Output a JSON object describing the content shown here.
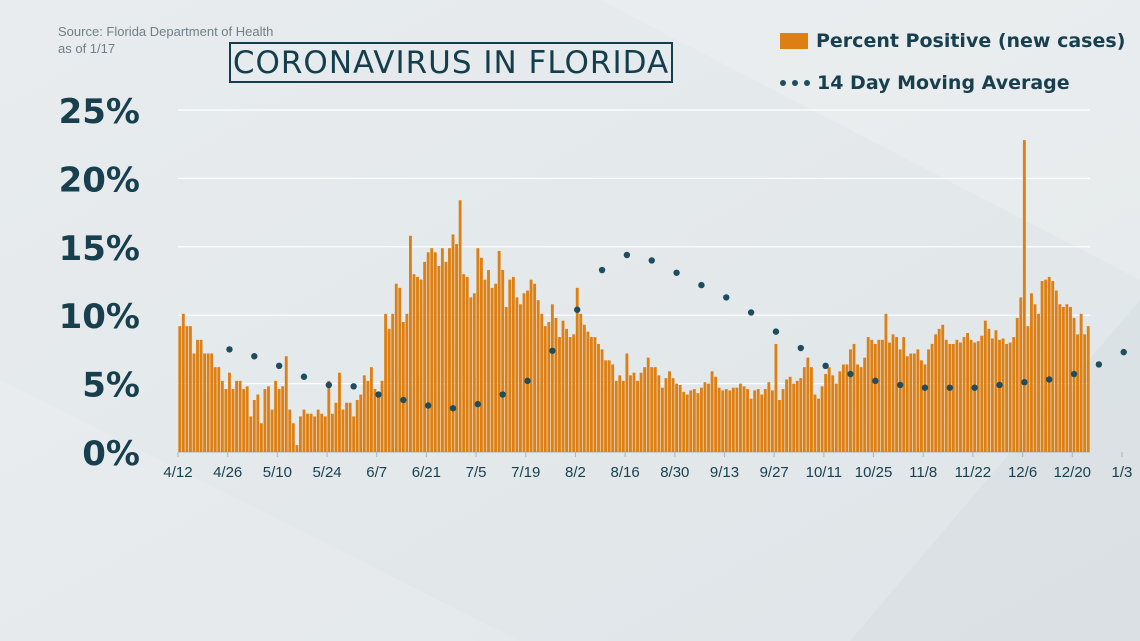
{
  "source_lines": [
    "Source: Florida Department of Health",
    "as of 1/17"
  ],
  "colors": {
    "bar": "#dd7f12",
    "dot": "#1d4d5e",
    "text": "#173f4e",
    "grid": "#ffffff",
    "axis": "#a9b5bb"
  },
  "chart_data": {
    "type": "bar",
    "title": "CORONAVIRUS IN FLORIDA",
    "xlabel": "",
    "ylabel": "",
    "ylim": [
      0,
      25
    ],
    "y_ticks": [
      0,
      5,
      10,
      15,
      20,
      25
    ],
    "y_tick_labels": [
      "0%",
      "5%",
      "10%",
      "15%",
      "20%",
      "25%"
    ],
    "x_tick_labels": [
      "4/12",
      "4/26",
      "5/10",
      "5/24",
      "6/7",
      "6/21",
      "7/5",
      "7/19",
      "8/2",
      "8/16",
      "8/30",
      "9/13",
      "9/27",
      "10/11",
      "10/25",
      "11/8",
      "11/22",
      "12/6",
      "12/20",
      "1/3"
    ],
    "grid": true,
    "legend_position": "top-right",
    "start_date": "4/12",
    "series": [
      {
        "name": "Percent Positive (new cases)",
        "type": "bar",
        "values": [
          9.2,
          10.1,
          9.2,
          9.2,
          7.2,
          8.2,
          8.2,
          7.2,
          7.2,
          7.2,
          6.2,
          6.2,
          5.2,
          4.6,
          5.8,
          4.6,
          5.2,
          5.2,
          4.6,
          4.8,
          2.6,
          3.8,
          4.2,
          2.1,
          4.6,
          4.8,
          3.1,
          5.2,
          4.6,
          4.8,
          7.0,
          3.1,
          2.1,
          0.5,
          2.6,
          3.1,
          2.8,
          2.8,
          2.6,
          3.1,
          2.8,
          2.6,
          5.2,
          2.8,
          3.6,
          5.8,
          3.1,
          3.6,
          3.6,
          2.6,
          3.8,
          4.2,
          5.6,
          5.2,
          6.2,
          4.6,
          4.2,
          5.2,
          10.1,
          9.0,
          10.1,
          12.3,
          12.0,
          9.5,
          10.1,
          15.8,
          13.0,
          12.8,
          12.6,
          13.9,
          14.6,
          14.9,
          14.6,
          13.6,
          14.9,
          13.9,
          14.9,
          15.9,
          15.2,
          18.4,
          13.0,
          12.8,
          11.3,
          11.6,
          14.9,
          14.2,
          12.6,
          13.3,
          12.0,
          12.3,
          14.7,
          13.3,
          10.6,
          12.6,
          12.8,
          11.3,
          10.8,
          11.6,
          11.8,
          12.6,
          12.3,
          11.1,
          10.1,
          9.2,
          9.5,
          10.8,
          9.8,
          8.4,
          9.6,
          9.0,
          8.4,
          8.6,
          12.0,
          10.1,
          9.3,
          8.8,
          8.4,
          8.4,
          7.9,
          7.5,
          6.7,
          6.7,
          6.4,
          5.2,
          5.6,
          5.2,
          7.2,
          5.6,
          5.8,
          5.2,
          5.8,
          6.2,
          6.9,
          6.2,
          6.2,
          5.6,
          4.7,
          5.4,
          5.9,
          5.4,
          5.0,
          4.9,
          4.4,
          4.2,
          4.5,
          4.6,
          4.3,
          4.7,
          5.1,
          5.0,
          5.9,
          5.5,
          4.7,
          4.5,
          4.6,
          4.5,
          4.7,
          4.7,
          5.0,
          4.8,
          4.6,
          3.9,
          4.5,
          4.6,
          4.2,
          4.6,
          5.1,
          4.5,
          7.9,
          3.8,
          4.6,
          5.3,
          5.5,
          5.0,
          5.2,
          5.4,
          6.2,
          6.9,
          6.2,
          4.2,
          3.9,
          4.8,
          5.7,
          6.2,
          5.6,
          5.0,
          5.9,
          6.4,
          6.4,
          7.5,
          7.9,
          6.4,
          6.2,
          6.9,
          8.4,
          8.2,
          7.9,
          8.2,
          8.2,
          10.1,
          8.0,
          8.6,
          8.4,
          7.5,
          8.4,
          7.0,
          7.2,
          7.2,
          7.5,
          6.7,
          6.4,
          7.5,
          7.9,
          8.6,
          9.0,
          9.3,
          8.2,
          7.9,
          7.9,
          8.2,
          8.0,
          8.4,
          8.7,
          8.2,
          8.0,
          8.1,
          8.5,
          9.6,
          9.0,
          8.3,
          8.9,
          8.2,
          8.3,
          7.9,
          8.0,
          8.4,
          9.8,
          11.3,
          22.8,
          9.2,
          11.6,
          10.8,
          10.1,
          12.5,
          12.6,
          12.8,
          12.5,
          11.8,
          10.8,
          10.6,
          10.8,
          10.6,
          9.8,
          8.6,
          10.1,
          8.6,
          9.2
        ]
      },
      {
        "name": "14 Day Moving Average",
        "type": "dotted-line",
        "x_index": [
          14,
          21,
          28,
          35,
          42,
          49,
          56,
          63,
          70,
          77,
          84,
          91,
          98,
          105,
          112,
          119,
          126,
          133,
          140,
          147,
          154,
          161,
          168,
          175,
          182,
          189,
          196,
          203,
          210,
          217,
          224,
          231,
          238,
          245,
          252,
          259,
          266
        ],
        "values": [
          7.5,
          7.0,
          6.3,
          5.5,
          4.9,
          4.8,
          4.2,
          3.8,
          3.4,
          3.2,
          3.5,
          4.2,
          5.2,
          7.4,
          10.4,
          13.3,
          14.4,
          14.0,
          13.1,
          12.2,
          11.3,
          10.2,
          8.8,
          7.6,
          6.3,
          5.7,
          5.2,
          4.9,
          4.7,
          4.7,
          4.7,
          4.9,
          5.1,
          5.3,
          5.7,
          6.4,
          7.3
        ]
      }
    ]
  }
}
